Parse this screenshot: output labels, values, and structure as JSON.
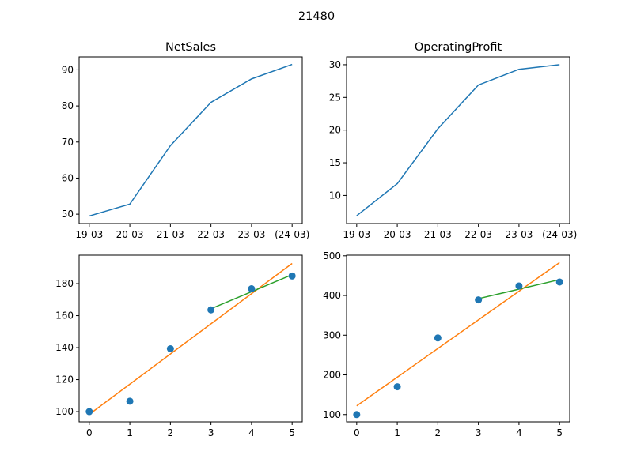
{
  "figure": {
    "suptitle": "21480"
  },
  "colors": {
    "line": "#1f77b4",
    "scatter": "#1f77b4",
    "fit_all": "#ff7f0e",
    "fit_recent": "#2ca02c"
  },
  "chart_data": [
    {
      "type": "line",
      "title": "NetSales",
      "categories": [
        "19-03",
        "20-03",
        "21-03",
        "22-03",
        "23-03",
        "(24-03)"
      ],
      "series": [
        {
          "values": [
            49.5,
            52.8,
            69.0,
            81.0,
            87.5,
            91.5
          ]
        }
      ],
      "ylim": [
        47.4,
        93.6
      ],
      "yticks": [
        50,
        60,
        70,
        80,
        90
      ]
    },
    {
      "type": "line",
      "title": "OperatingProfit",
      "categories": [
        "19-03",
        "20-03",
        "21-03",
        "22-03",
        "23-03",
        "(24-03)"
      ],
      "series": [
        {
          "values": [
            6.9,
            11.8,
            20.2,
            26.9,
            29.3,
            30.0
          ]
        }
      ],
      "ylim": [
        5.7,
        31.2
      ],
      "yticks": [
        10,
        15,
        20,
        25,
        30
      ]
    },
    {
      "type": "scatter",
      "title": "",
      "x": [
        0,
        1,
        2,
        3,
        4,
        5
      ],
      "series": [
        {
          "kind": "points",
          "values": [
            100,
            106.5,
            139.3,
            163.6,
            176.8,
            184.8
          ]
        },
        {
          "kind": "line",
          "x": [
            0,
            5
          ],
          "values": [
            98.3,
            192.6
          ]
        },
        {
          "kind": "line",
          "x": [
            3,
            5
          ],
          "values": [
            164.3,
            185.6
          ]
        }
      ],
      "xlim": [
        -0.25,
        5.25
      ],
      "ylim": [
        93.6,
        197.8
      ],
      "xticks": [
        0,
        1,
        2,
        3,
        4,
        5
      ],
      "yticks": [
        100,
        120,
        140,
        160,
        180
      ]
    },
    {
      "type": "scatter",
      "title": "",
      "x": [
        0,
        1,
        2,
        3,
        4,
        5
      ],
      "series": [
        {
          "kind": "points",
          "values": [
            100,
            170,
            293,
            389,
            424,
            434
          ]
        },
        {
          "kind": "line",
          "x": [
            0,
            5
          ],
          "values": [
            122,
            483
          ]
        },
        {
          "kind": "line",
          "x": [
            3,
            5
          ],
          "values": [
            392,
            440
          ]
        }
      ],
      "xlim": [
        -0.25,
        5.25
      ],
      "ylim": [
        81.6,
        501.6
      ],
      "xticks": [
        0,
        1,
        2,
        3,
        4,
        5
      ],
      "yticks": [
        100,
        200,
        300,
        400,
        500
      ]
    }
  ]
}
